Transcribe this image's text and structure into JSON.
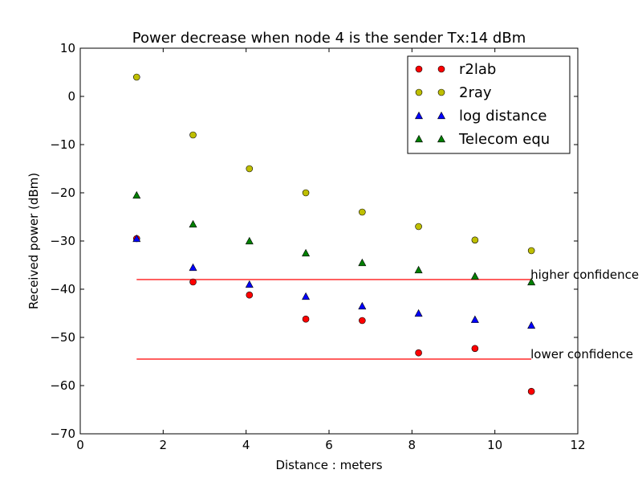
{
  "chart_data": {
    "type": "scatter",
    "title": "Power decrease when node 4 is the sender Tx:14 dBm",
    "xlabel": "Distance : meters",
    "ylabel": "Received power (dBm)",
    "xlim": [
      0,
      12
    ],
    "ylim": [
      -70,
      10
    ],
    "xticks": [
      "0",
      "2",
      "4",
      "6",
      "8",
      "10",
      "12"
    ],
    "yticks": [
      "10",
      "0",
      "−10",
      "−20",
      "−30",
      "−40",
      "−50",
      "−60",
      "−70"
    ],
    "grid": false,
    "legend_position": "top-right",
    "x": [
      1.36,
      2.72,
      4.08,
      5.44,
      6.8,
      8.16,
      9.52,
      10.88
    ],
    "series": [
      {
        "name": "r2lab",
        "marker": "circle",
        "color": "#ff0000",
        "values": [
          -29.5,
          -38.5,
          -41.2,
          -46.2,
          -46.5,
          -53.2,
          -52.3,
          -61.2
        ]
      },
      {
        "name": "2ray",
        "marker": "circle",
        "color": "#bfbf00",
        "values": [
          4.0,
          -8.0,
          -15.0,
          -20.0,
          -24.0,
          -27.0,
          -29.8,
          -32.0
        ]
      },
      {
        "name": "log distance",
        "marker": "triangle",
        "color": "#0000ff",
        "values": [
          -29.5,
          -35.5,
          -39.0,
          -41.5,
          -43.5,
          -45.0,
          -46.3,
          -47.5
        ]
      },
      {
        "name": "Telecom equ",
        "marker": "triangle",
        "color": "#007f00",
        "values": [
          -20.5,
          -26.5,
          -30.0,
          -32.5,
          -34.5,
          -36.0,
          -37.3,
          -38.5
        ]
      }
    ],
    "reference_lines": [
      {
        "label": "higher confidence",
        "y": -38.0,
        "x_start": 1.36,
        "x_end": 10.88,
        "color": "#ff0000"
      },
      {
        "label": "lower confidence",
        "y": -54.5,
        "x_start": 1.36,
        "x_end": 10.88,
        "color": "#ff0000"
      }
    ]
  }
}
